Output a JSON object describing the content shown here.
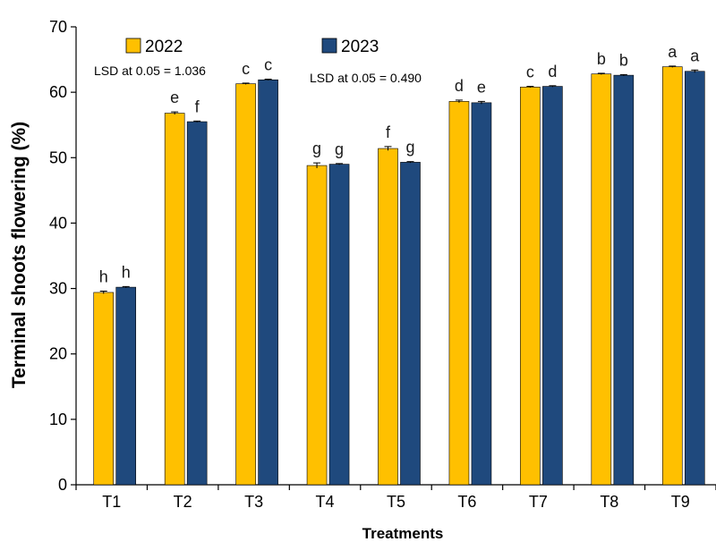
{
  "chart_data": {
    "type": "bar",
    "title": "",
    "xlabel": "Treatments",
    "ylabel": "Terminal shoots flowering (%)",
    "ylim": [
      0,
      70
    ],
    "yticks": [
      0,
      10,
      20,
      30,
      40,
      50,
      60,
      70
    ],
    "categories": [
      "T1",
      "T2",
      "T3",
      "T4",
      "T5",
      "T6",
      "T7",
      "T8",
      "T9"
    ],
    "series": [
      {
        "name": "2022",
        "color": "#FFC000",
        "values": [
          29.4,
          56.8,
          61.3,
          48.8,
          51.4,
          58.6,
          60.8,
          62.8,
          63.9
        ],
        "errors": [
          0.2,
          0.2,
          0.1,
          0.4,
          0.3,
          0.2,
          0.1,
          0.1,
          0.1
        ],
        "letters": [
          "h",
          "e",
          "c",
          "g",
          "f",
          "d",
          "c",
          "b",
          "a"
        ]
      },
      {
        "name": "2023",
        "color": "#1F497D",
        "values": [
          30.2,
          55.5,
          61.9,
          49.0,
          49.3,
          58.4,
          60.9,
          62.6,
          63.2
        ],
        "errors": [
          0.1,
          0.1,
          0.1,
          0.1,
          0.1,
          0.2,
          0.1,
          0.1,
          0.2
        ],
        "letters": [
          "h",
          "f",
          "c",
          "g",
          "g",
          "e",
          "d",
          "b",
          "a"
        ]
      }
    ],
    "annotations": {
      "lsd_2022": "LSD at 0.05 = 1.036",
      "lsd_2023": "LSD at 0.05 = 0.490"
    },
    "legend_position": "top-left",
    "grid": false
  }
}
